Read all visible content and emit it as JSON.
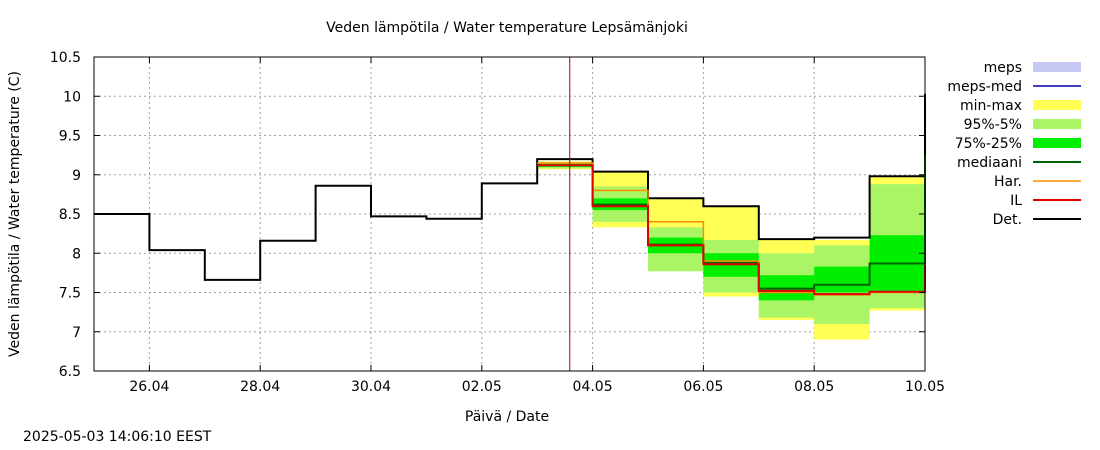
{
  "chart_data": {
    "type": "line",
    "title": "Veden lämpötila / Water temperature Lepsämänjoki",
    "xlabel": "Päivä / Date",
    "ylabel": "Veden lämpötila / Water temperature (C)",
    "ylim": [
      6.5,
      10.5
    ],
    "xlim": [
      "2025-04-25",
      "2025-05-10"
    ],
    "grid": true,
    "legend_position": "right",
    "x_ticks": [
      {
        "date": "2025-04-26",
        "label": "26.04"
      },
      {
        "date": "2025-04-28",
        "label": "28.04"
      },
      {
        "date": "2025-04-30",
        "label": "30.04"
      },
      {
        "date": "2025-05-02",
        "label": "02.05"
      },
      {
        "date": "2025-05-04",
        "label": "04.05"
      },
      {
        "date": "2025-05-06",
        "label": "06.05"
      },
      {
        "date": "2025-05-08",
        "label": "08.05"
      },
      {
        "date": "2025-05-10",
        "label": "10.05"
      }
    ],
    "y_ticks": [
      {
        "value": 6.5,
        "label": "6.5"
      },
      {
        "value": 7,
        "label": "7"
      },
      {
        "value": 7.5,
        "label": "7.5"
      },
      {
        "value": 8,
        "label": "8"
      },
      {
        "value": 8.5,
        "label": "8.5"
      },
      {
        "value": 9,
        "label": "9"
      },
      {
        "value": 9.5,
        "label": "9.5"
      },
      {
        "value": 10,
        "label": "10"
      },
      {
        "value": 10.5,
        "label": "10.5"
      }
    ],
    "current_time_marker": "2025-05-03T14:06",
    "legend": [
      {
        "name": "meps",
        "type": "band",
        "color": "#c8c8f5"
      },
      {
        "name": "meps-med",
        "type": "line",
        "color": "#4040c0"
      },
      {
        "name": "min-max",
        "type": "band",
        "color": "#ffff55"
      },
      {
        "name": "95%-5%",
        "type": "band",
        "color": "#aaf566"
      },
      {
        "name": "75%-25%",
        "type": "band",
        "color": "#00ee00"
      },
      {
        "name": "mediaani",
        "type": "line",
        "color": "#006400"
      },
      {
        "name": "Har.",
        "type": "line",
        "color": "#ff8c00"
      },
      {
        "name": "IL",
        "type": "line",
        "color": "#e00000"
      },
      {
        "name": "Det.",
        "type": "line",
        "color": "#000000"
      }
    ],
    "forecast_days": [
      "2025-05-03",
      "2025-05-04",
      "2025-05-05",
      "2025-05-06",
      "2025-05-07",
      "2025-05-08",
      "2025-05-09"
    ],
    "bands": {
      "min_max": [
        [
          9.07,
          9.17
        ],
        [
          8.33,
          9.03
        ],
        [
          8.05,
          8.7
        ],
        [
          7.45,
          8.6
        ],
        [
          7.15,
          8.17
        ],
        [
          6.9,
          8.17
        ],
        [
          7.27,
          8.98
        ]
      ],
      "p95_5": [
        [
          9.08,
          9.16
        ],
        [
          8.4,
          8.85
        ],
        [
          7.77,
          8.33
        ],
        [
          7.5,
          8.17
        ],
        [
          7.18,
          8.0
        ],
        [
          7.1,
          8.1
        ],
        [
          7.3,
          8.88
        ]
      ],
      "p75_25": [
        [
          9.1,
          9.14
        ],
        [
          8.55,
          8.7
        ],
        [
          8.0,
          8.2
        ],
        [
          7.7,
          8.0
        ],
        [
          7.4,
          7.72
        ],
        [
          7.5,
          7.83
        ],
        [
          7.5,
          8.23
        ]
      ]
    },
    "series": [
      {
        "name": "Det.",
        "points": [
          [
            "2025-04-25",
            8.5
          ],
          [
            "2025-04-26",
            8.5
          ],
          [
            "2025-04-26",
            8.04
          ],
          [
            "2025-04-27",
            8.04
          ],
          [
            "2025-04-27",
            7.66
          ],
          [
            "2025-04-28",
            7.66
          ],
          [
            "2025-04-28",
            8.16
          ],
          [
            "2025-04-29",
            8.16
          ],
          [
            "2025-04-29",
            8.86
          ],
          [
            "2025-04-30",
            8.86
          ],
          [
            "2025-04-30",
            8.47
          ],
          [
            "2025-05-01",
            8.47
          ],
          [
            "2025-05-01",
            8.44
          ],
          [
            "2025-05-02",
            8.44
          ],
          [
            "2025-05-02",
            8.89
          ],
          [
            "2025-05-03",
            8.89
          ],
          [
            "2025-05-03",
            9.2
          ],
          [
            "2025-05-04",
            9.2
          ],
          [
            "2025-05-04",
            9.04
          ],
          [
            "2025-05-05",
            9.04
          ],
          [
            "2025-05-05",
            8.7
          ],
          [
            "2025-05-06",
            8.7
          ],
          [
            "2025-05-06",
            8.6
          ],
          [
            "2025-05-07",
            8.6
          ],
          [
            "2025-05-07",
            8.18
          ],
          [
            "2025-05-08",
            8.18
          ],
          [
            "2025-05-08",
            8.2
          ],
          [
            "2025-05-09",
            8.2
          ],
          [
            "2025-05-09",
            8.98
          ],
          [
            "2025-05-10",
            8.98
          ],
          [
            "2025-05-10",
            10.03
          ]
        ]
      },
      {
        "name": "mediaani",
        "points": [
          [
            "2025-05-03",
            9.12
          ],
          [
            "2025-05-04",
            9.12
          ],
          [
            "2025-05-04",
            8.62
          ],
          [
            "2025-05-05",
            8.62
          ],
          [
            "2025-05-05",
            8.11
          ],
          [
            "2025-05-06",
            8.11
          ],
          [
            "2025-05-06",
            7.88
          ],
          [
            "2025-05-07",
            7.88
          ],
          [
            "2025-05-07",
            7.55
          ],
          [
            "2025-05-08",
            7.55
          ],
          [
            "2025-05-08",
            7.6
          ],
          [
            "2025-05-09",
            7.6
          ],
          [
            "2025-05-09",
            7.87
          ],
          [
            "2025-05-10",
            7.87
          ],
          [
            "2025-05-10",
            9.25
          ]
        ]
      },
      {
        "name": "Har.",
        "points": [
          [
            "2025-05-03",
            9.15
          ],
          [
            "2025-05-04",
            9.15
          ],
          [
            "2025-05-04",
            8.8
          ],
          [
            "2025-05-05",
            8.8
          ],
          [
            "2025-05-05",
            8.4
          ],
          [
            "2025-05-06",
            8.4
          ],
          [
            "2025-05-06",
            7.9
          ],
          [
            "2025-05-07",
            7.9
          ],
          [
            "2025-05-07",
            7.5
          ],
          [
            "2025-05-08",
            7.5
          ],
          [
            "2025-05-08",
            7.47
          ],
          [
            "2025-05-09",
            7.47
          ],
          [
            "2025-05-09",
            7.5
          ],
          [
            "2025-05-10",
            7.5
          ]
        ]
      },
      {
        "name": "IL",
        "points": [
          [
            "2025-05-03",
            9.12
          ],
          [
            "2025-05-04",
            9.12
          ],
          [
            "2025-05-04",
            8.6
          ],
          [
            "2025-05-05",
            8.6
          ],
          [
            "2025-05-05",
            8.1
          ],
          [
            "2025-05-06",
            8.1
          ],
          [
            "2025-05-06",
            7.86
          ],
          [
            "2025-05-07",
            7.86
          ],
          [
            "2025-05-07",
            7.52
          ],
          [
            "2025-05-08",
            7.52
          ],
          [
            "2025-05-08",
            7.48
          ],
          [
            "2025-05-09",
            7.48
          ],
          [
            "2025-05-09",
            7.51
          ],
          [
            "2025-05-10",
            7.51
          ],
          [
            "2025-05-10",
            7.85
          ]
        ]
      }
    ]
  },
  "footer": {
    "timestamp": "2025-05-03 14:06:10 EEST"
  }
}
